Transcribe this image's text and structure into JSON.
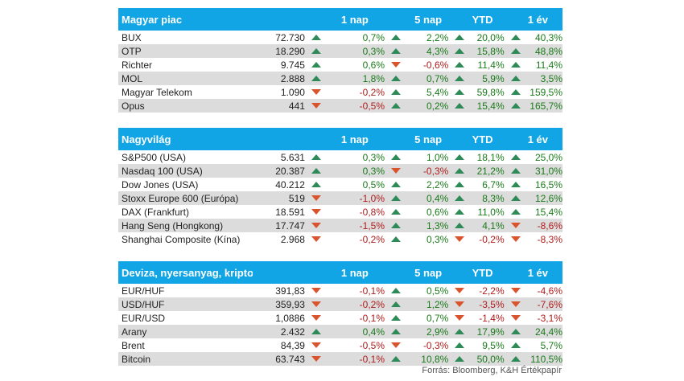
{
  "sections": [
    {
      "title": "Magyar piac",
      "columns": [
        "1 nap",
        "5 nap",
        "YTD",
        "1 év"
      ],
      "rows": [
        {
          "name": "BUX",
          "value": "72.730",
          "d1": "0,7%",
          "d5": "2,2%",
          "ytd": "20,0%",
          "y1": "40,3%"
        },
        {
          "name": "OTP",
          "value": "18.290",
          "d1": "0,3%",
          "d5": "4,3%",
          "ytd": "15,8%",
          "y1": "48,8%"
        },
        {
          "name": "Richter",
          "value": "9.745",
          "d1": "0,6%",
          "d5": "-0,6%",
          "ytd": "11,4%",
          "y1": "11,4%"
        },
        {
          "name": "MOL",
          "value": "2.888",
          "d1": "1,8%",
          "d5": "0,7%",
          "ytd": "5,9%",
          "y1": "3,5%"
        },
        {
          "name": "Magyar Telekom",
          "value": "1.090",
          "d1": "-0,2%",
          "d5": "5,4%",
          "ytd": "59,8%",
          "y1": "159,5%"
        },
        {
          "name": "Opus",
          "value": "441",
          "d1": "-0,5%",
          "d5": "0,2%",
          "ytd": "15,4%",
          "y1": "165,7%"
        }
      ]
    },
    {
      "title": "Nagyvilág",
      "columns": [
        "1 nap",
        "5 nap",
        "YTD",
        "1 év"
      ],
      "rows": [
        {
          "name": "S&P500 (USA)",
          "value": "5.631",
          "d1": "0,3%",
          "d5": "1,0%",
          "ytd": "18,1%",
          "y1": "25,0%"
        },
        {
          "name": "Nasdaq 100 (USA)",
          "value": "20.387",
          "d1": "0,3%",
          "d5": "-0,3%",
          "ytd": "21,2%",
          "y1": "31,0%"
        },
        {
          "name": "Dow Jones (USA)",
          "value": "40.212",
          "d1": "0,5%",
          "d5": "2,2%",
          "ytd": "6,7%",
          "y1": "16,5%"
        },
        {
          "name": "Stoxx Europe 600 (Európa)",
          "value": "519",
          "d1": "-1,0%",
          "d5": "0,4%",
          "ytd": "8,3%",
          "y1": "12,6%"
        },
        {
          "name": "DAX (Frankfurt)",
          "value": "18.591",
          "d1": "-0,8%",
          "d5": "0,6%",
          "ytd": "11,0%",
          "y1": "15,4%"
        },
        {
          "name": "Hang Seng (Hongkong)",
          "value": "17.747",
          "d1": "-1,5%",
          "d5": "1,3%",
          "ytd": "4,1%",
          "y1": "-8,6%"
        },
        {
          "name": "Shanghai Composite (Kína)",
          "value": "2.968",
          "d1": "-0,2%",
          "d5": "0,3%",
          "ytd": "-0,2%",
          "y1": "-8,3%"
        }
      ]
    },
    {
      "title": "Deviza, nyersanyag, kripto",
      "columns": [
        "1 nap",
        "5 nap",
        "YTD",
        "1 év"
      ],
      "rows": [
        {
          "name": "EUR/HUF",
          "value": "391,83",
          "d1": "-0,1%",
          "d5": "0,5%",
          "ytd": "-2,2%",
          "y1": "-4,6%"
        },
        {
          "name": "USD/HUF",
          "value": "359,93",
          "d1": "-0,2%",
          "d5": "1,2%",
          "ytd": "-3,5%",
          "y1": "-7,6%"
        },
        {
          "name": "EUR/USD",
          "value": "1,0886",
          "d1": "-0,1%",
          "d5": "0,7%",
          "ytd": "-1,4%",
          "y1": "-3,1%"
        },
        {
          "name": "Arany",
          "value": "2.432",
          "d1": "0,4%",
          "d5": "2,9%",
          "ytd": "17,9%",
          "y1": "24,4%"
        },
        {
          "name": "Brent",
          "value": "84,39",
          "d1": "-0,5%",
          "d5": "-0,3%",
          "ytd": "9,5%",
          "y1": "5,7%"
        },
        {
          "name": "Bitcoin",
          "value": "63.743",
          "d1": "-0,1%",
          "d5": "10,8%",
          "ytd": "50,0%",
          "y1": "110,5%"
        }
      ]
    }
  ],
  "source": "Forrás: Bloomberg, K&H Értékpapír",
  "colors": {
    "header_bg": "#12a5e5",
    "up": "#2e8b57",
    "down": "#d9542c",
    "alt_row": "#dcdcdc"
  }
}
